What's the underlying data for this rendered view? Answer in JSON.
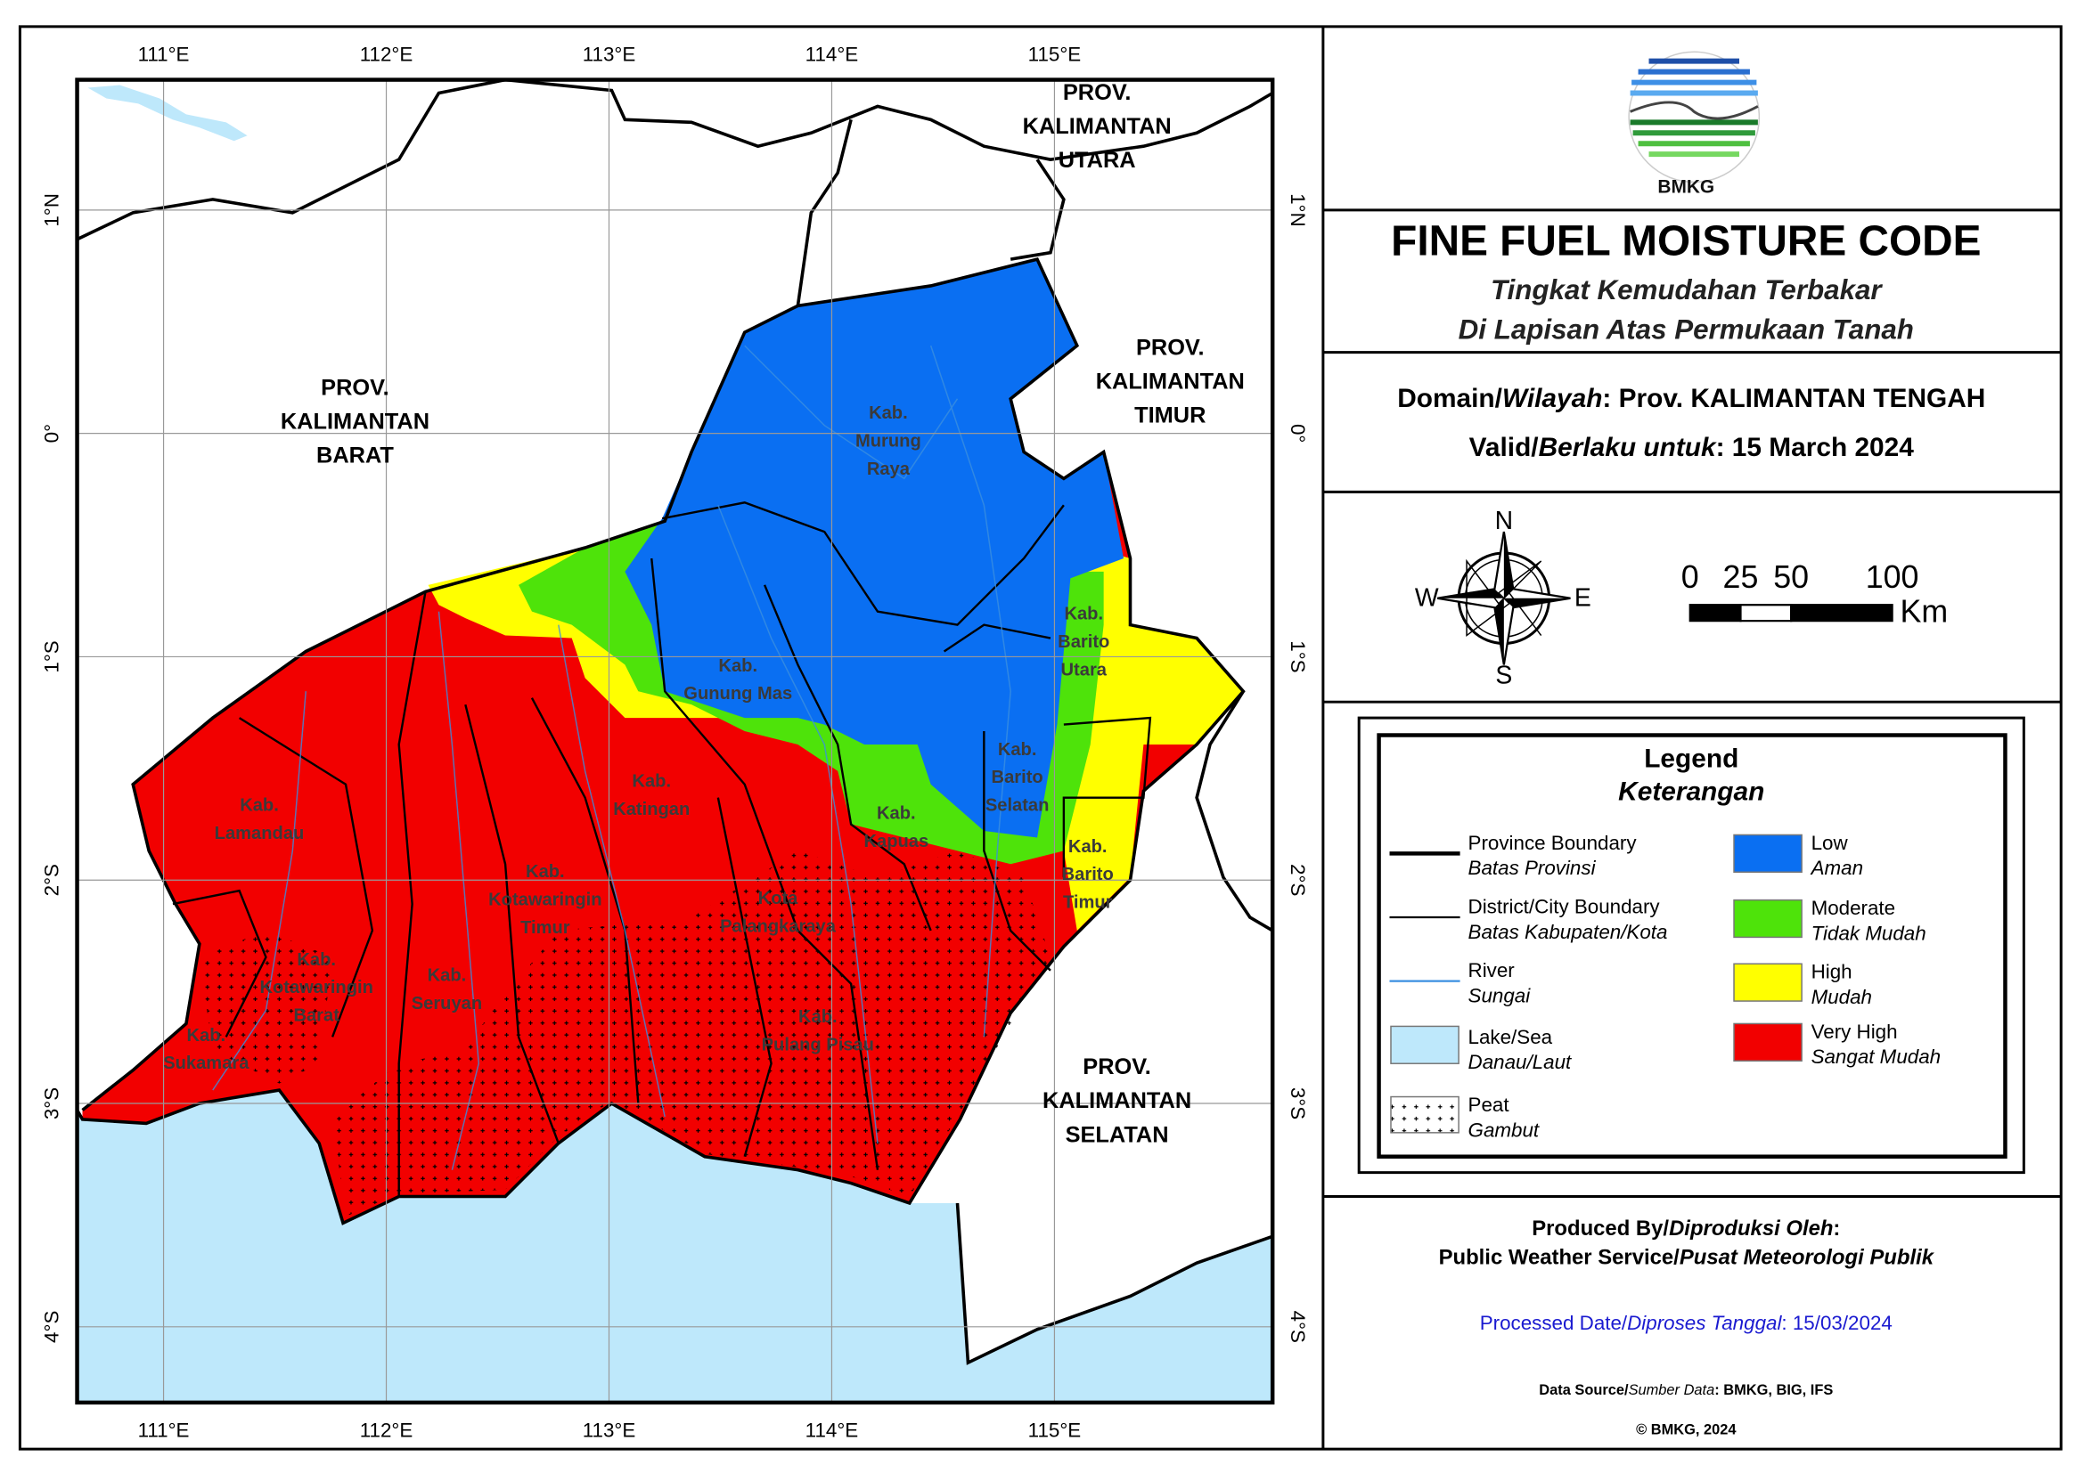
{
  "map": {
    "lon_ticks": [
      {
        "value": 111,
        "label": "111°E"
      },
      {
        "value": 112,
        "label": "112°E"
      },
      {
        "value": 113,
        "label": "113°E"
      },
      {
        "value": 114,
        "label": "114°E"
      },
      {
        "value": 115,
        "label": "115°E"
      }
    ],
    "lat_ticks": [
      {
        "value": 1,
        "label": "1°N"
      },
      {
        "value": 0,
        "label": "0°"
      },
      {
        "value": -1,
        "label": "1°S"
      },
      {
        "value": -2,
        "label": "2°S"
      },
      {
        "value": -3,
        "label": "3°S"
      },
      {
        "value": -4,
        "label": "4°S"
      }
    ],
    "provinces": [
      {
        "lines": [
          "PROV.",
          "KALIMANTAN",
          "BARAT"
        ]
      },
      {
        "lines": [
          "PROV.",
          "KALIMANTAN",
          "UTARA"
        ]
      },
      {
        "lines": [
          "PROV.",
          "KALIMANTAN",
          "TIMUR"
        ]
      },
      {
        "lines": [
          "PROV.",
          "KALIMANTAN",
          "SELATAN"
        ]
      }
    ],
    "regions": [
      {
        "lines": [
          "Kab.",
          "Murung",
          "Raya"
        ]
      },
      {
        "lines": [
          "Kab.",
          "Gunung Mas"
        ]
      },
      {
        "lines": [
          "Kab.",
          "Barito",
          "Utara"
        ]
      },
      {
        "lines": [
          "Kab.",
          "Barito",
          "Selatan"
        ]
      },
      {
        "lines": [
          "Kab.",
          "Katingan"
        ]
      },
      {
        "lines": [
          "Kab.",
          "Kapuas"
        ]
      },
      {
        "lines": [
          "Kab.",
          "Barito",
          "Timur"
        ]
      },
      {
        "lines": [
          "Kab.",
          "Lamandau"
        ]
      },
      {
        "lines": [
          "Kab.",
          "Kotawaringin",
          "Timur"
        ]
      },
      {
        "lines": [
          "Kota",
          "Palangkaraya"
        ]
      },
      {
        "lines": [
          "Kab.",
          "Kotawaringin",
          "Barat"
        ]
      },
      {
        "lines": [
          "Kab.",
          "Seruyan"
        ]
      },
      {
        "lines": [
          "Kab.",
          "Pulang Pisau"
        ]
      },
      {
        "lines": [
          "Kab.",
          "Sukamara"
        ]
      }
    ]
  },
  "header": {
    "logo_text": "BMKG",
    "title": "FINE FUEL MOISTURE CODE",
    "subtitle_lines": [
      "Tingkat Kemudahan Terbakar",
      "Di Lapisan Atas Permukaan Tanah"
    ]
  },
  "info": {
    "domain_en": "Domain/",
    "domain_id": "Wilayah",
    "domain_value": ": Prov. KALIMANTAN TENGAH",
    "valid_en": "Valid/",
    "valid_id": "Berlaku untuk",
    "valid_value": ": 15 March 2024"
  },
  "compass": {
    "n": "N",
    "e": "E",
    "s": "S",
    "w": "W"
  },
  "scale": {
    "ticks": [
      0,
      25,
      50,
      100
    ],
    "unit": "Km"
  },
  "legend": {
    "title": "Legend",
    "subtitle": "Keterangan",
    "lines": [
      {
        "label": "Province Boundary",
        "label_it": "Batas Provinsi"
      },
      {
        "label": "District/City Boundary",
        "label_it": "Batas Kabupaten/Kota"
      },
      {
        "label": "River",
        "label_it": "Sungai"
      },
      {
        "label": "Lake/Sea",
        "label_it": "Danau/Laut",
        "color": "#bee8fb"
      },
      {
        "label": "Peat",
        "label_it": "Gambut"
      }
    ],
    "classes": [
      {
        "label": "Low",
        "label_it": "Aman",
        "color": "#0a6ff2"
      },
      {
        "label": "Moderate",
        "label_it": "Tidak Mudah",
        "color": "#4ee30a"
      },
      {
        "label": "High",
        "label_it": "Mudah",
        "color": "#ffff00"
      },
      {
        "label": "Very High",
        "label_it": "Sangat Mudah",
        "color": "#f20000"
      }
    ]
  },
  "footer": {
    "produced_en": "Produced By/",
    "produced_id": "Diproduksi Oleh",
    "produced_colon": ":",
    "service_en": "Public Weather Service/",
    "service_id": "Pusat Meteorologi Publik",
    "processed_en": "Processed Date/",
    "processed_id": "Diproses Tanggal",
    "processed_value": ": 15/03/2024",
    "source_en": "Data Source/",
    "source_id": "Sumber Data",
    "source_value": ": BMKG, BIG, IFS",
    "copyright": "© BMKG, 2024"
  }
}
